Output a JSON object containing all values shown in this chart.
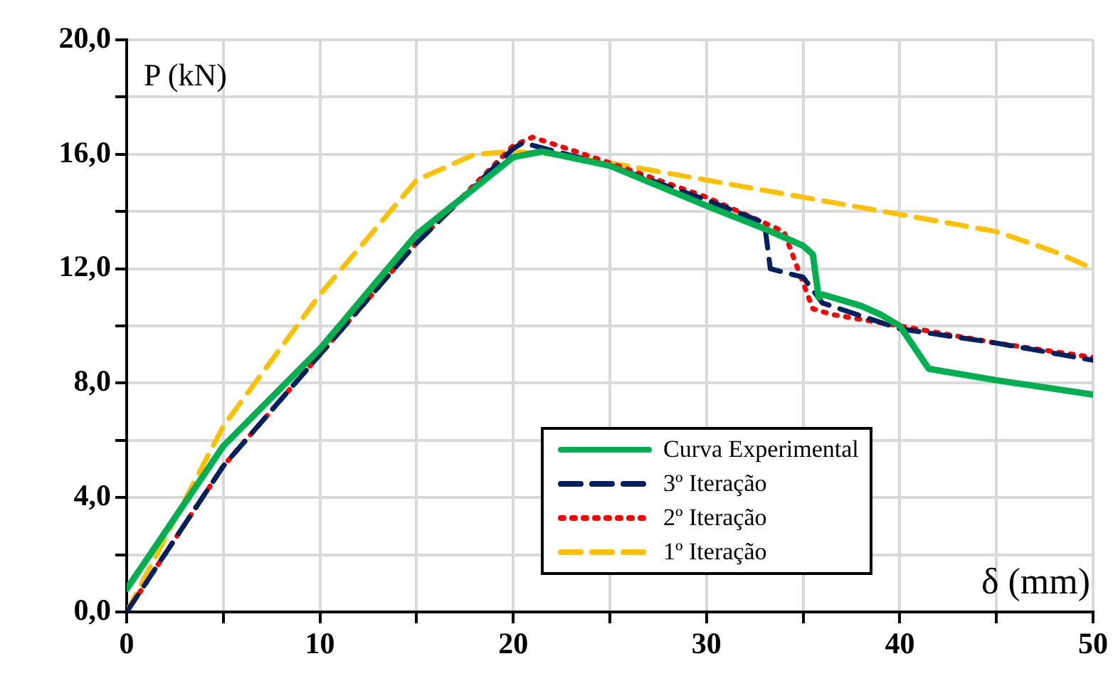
{
  "chart_data": {
    "type": "line",
    "xlabel": "δ (mm)",
    "ylabel": "P (kN)",
    "xlim": [
      0,
      50
    ],
    "xticks": [
      {
        "value": 0,
        "label": "0"
      },
      {
        "value": 5,
        "label": null
      },
      {
        "value": 10,
        "label": "10"
      },
      {
        "value": 15,
        "label": null
      },
      {
        "value": 20,
        "label": "20"
      },
      {
        "value": 25,
        "label": null
      },
      {
        "value": 30,
        "label": "30"
      },
      {
        "value": 35,
        "label": null
      },
      {
        "value": 40,
        "label": "40"
      },
      {
        "value": 45,
        "label": null
      },
      {
        "value": 50,
        "label": "50"
      }
    ],
    "ylim": [
      0,
      20
    ],
    "yticks": [
      {
        "value": 0,
        "label": "0,0"
      },
      {
        "value": 2,
        "label": null
      },
      {
        "value": 4,
        "label": "4,0"
      },
      {
        "value": 6,
        "label": null
      },
      {
        "value": 8,
        "label": "8,0"
      },
      {
        "value": 10,
        "label": null
      },
      {
        "value": 12,
        "label": "12,0"
      },
      {
        "value": 14,
        "label": null
      },
      {
        "value": 16,
        "label": "16,0"
      },
      {
        "value": 18,
        "label": null
      },
      {
        "value": 20,
        "label": "20,0"
      }
    ],
    "grid": true,
    "legend": "bottom right",
    "marker": "none",
    "series": [
      {
        "name": "Curva Experimental",
        "color": "#00b050",
        "line_style": "solid",
        "x": [
          0,
          5,
          10,
          15,
          20,
          21.5,
          25,
          30,
          33,
          35,
          35.5,
          35.8,
          36,
          38,
          39,
          40,
          41.5,
          45,
          50
        ],
        "values": [
          0.8,
          5.8,
          9.2,
          13.2,
          15.9,
          16.1,
          15.6,
          14.2,
          13.4,
          12.8,
          12.5,
          11.0,
          11.1,
          10.7,
          10.4,
          10.0,
          8.5,
          8.1,
          7.6
        ]
      },
      {
        "name": "3º Iteração",
        "color": "#002060",
        "line_style": "dashed",
        "x": [
          0,
          5,
          10,
          15,
          20,
          20.5,
          25,
          30,
          33,
          33.3,
          35,
          36,
          40,
          45,
          50
        ],
        "values": [
          0,
          5.1,
          9.0,
          12.9,
          16.2,
          16.4,
          15.6,
          14.4,
          13.6,
          12.0,
          11.7,
          10.8,
          9.9,
          9.4,
          8.8
        ]
      },
      {
        "name": "2º Iteração",
        "color": "#ff0000",
        "line_style": "dotted",
        "x": [
          0,
          5,
          10,
          15,
          20,
          21,
          25,
          30,
          34,
          35,
          35.5,
          36.5,
          40,
          45,
          50
        ],
        "values": [
          0,
          5.1,
          9.0,
          12.9,
          16.3,
          16.6,
          15.7,
          14.5,
          13.3,
          11.5,
          10.6,
          10.4,
          10.0,
          9.4,
          8.9
        ]
      },
      {
        "name": "1º Iteração",
        "color": "#ffc000",
        "line_style": "dashed",
        "x": [
          0,
          5,
          10,
          15,
          18,
          20,
          22,
          25,
          30,
          35,
          40,
          45,
          48,
          50
        ],
        "values": [
          0,
          6.5,
          11.1,
          15.1,
          16.0,
          16.1,
          16.0,
          15.7,
          15.1,
          14.5,
          13.9,
          13.3,
          12.6,
          12.0
        ]
      }
    ]
  }
}
